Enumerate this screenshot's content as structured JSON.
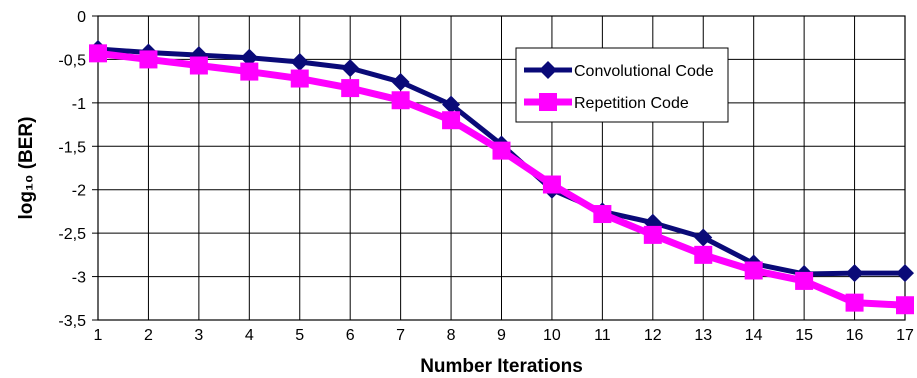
{
  "chart_data": {
    "type": "line",
    "title": "",
    "xlabel": "Number Iterations",
    "ylabel": "log₁₀ (BER)",
    "x": [
      1,
      2,
      3,
      4,
      5,
      6,
      7,
      8,
      9,
      10,
      11,
      12,
      13,
      14,
      15,
      16,
      17
    ],
    "xlim": [
      1,
      17
    ],
    "ylim": [
      -3.5,
      0
    ],
    "y_ticks": [
      0,
      -0.5,
      -1,
      -1.5,
      -2,
      -2.5,
      -3,
      -3.5
    ],
    "y_tick_labels": [
      "0",
      "-0,5",
      "-1",
      "-1,5",
      "-2",
      "-2,5",
      "-3",
      "-3,5"
    ],
    "x_tick_labels": [
      "1",
      "2",
      "3",
      "4",
      "5",
      "6",
      "7",
      "8",
      "9",
      "10",
      "11",
      "12",
      "13",
      "14",
      "15",
      "16",
      "17"
    ],
    "grid": true,
    "legend_position": "top-right",
    "series": [
      {
        "name": "Convolutional Code",
        "color": "#0a0a78",
        "marker": "diamond",
        "values": [
          -0.38,
          -0.42,
          -0.45,
          -0.48,
          -0.53,
          -0.6,
          -0.76,
          -1.02,
          -1.48,
          -2.0,
          -2.25,
          -2.38,
          -2.55,
          -2.85,
          -2.97,
          -2.96,
          -2.96
        ]
      },
      {
        "name": "Repetition Code",
        "color": "#ff00ff",
        "marker": "square",
        "values": [
          -0.43,
          -0.5,
          -0.57,
          -0.64,
          -0.72,
          -0.83,
          -0.97,
          -1.2,
          -1.55,
          -1.94,
          -2.28,
          -2.52,
          -2.75,
          -2.93,
          -3.05,
          -3.3,
          -3.33
        ]
      }
    ]
  }
}
